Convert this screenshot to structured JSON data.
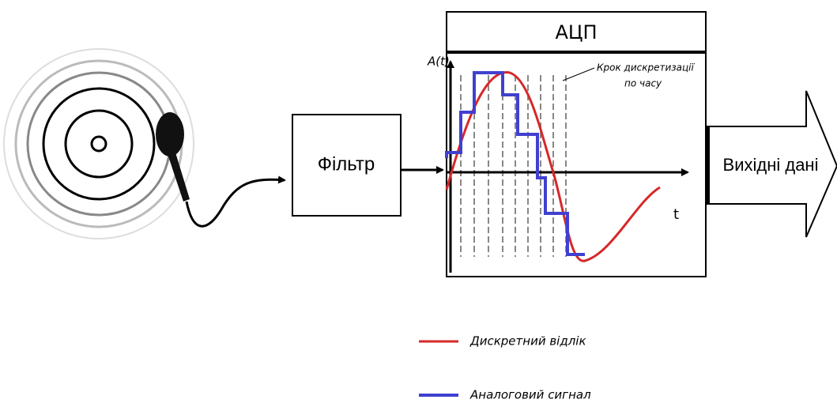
{
  "filter": {
    "label": "Фільтр"
  },
  "adc": {
    "title": "АЦП",
    "y_axis": "A(t)",
    "x_axis": "t",
    "annotation": {
      "line1": "Крок дискретизації",
      "line2": "по часу"
    }
  },
  "output": {
    "label": "Вихідні дані"
  },
  "legend": [
    {
      "label": "Дискретний відлік",
      "color": "#d62828"
    },
    {
      "label": "Аналоговий сигнал",
      "color": "#4040d0"
    }
  ]
}
